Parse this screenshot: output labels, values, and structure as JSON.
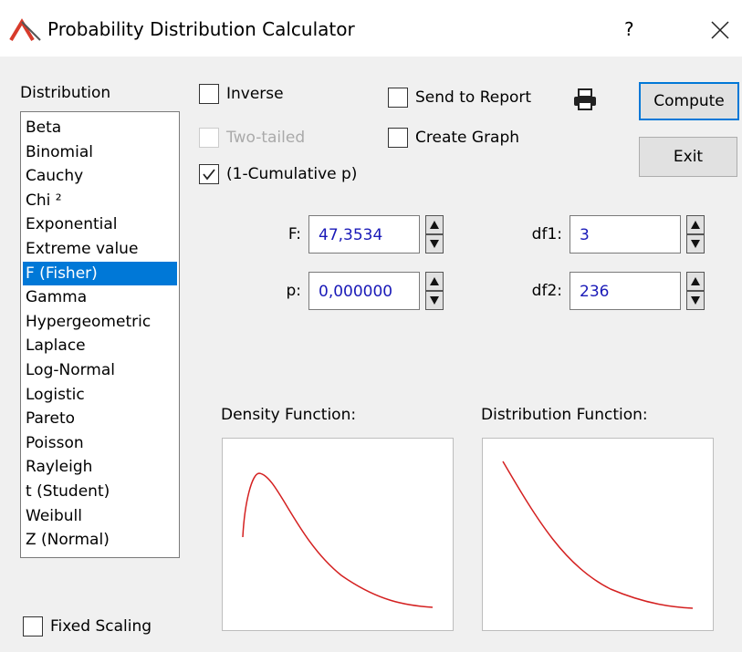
{
  "window": {
    "title": "Probability Distribution Calculator",
    "help": "?"
  },
  "distribution": {
    "label": "Distribution",
    "items": [
      "Beta",
      "Binomial",
      "Cauchy",
      "Chi ²",
      "Exponential",
      "Extreme value",
      "F (Fisher)",
      "Gamma",
      "Hypergeometric",
      "Laplace",
      "Log-Normal",
      "Logistic",
      "Pareto",
      "Poisson",
      "Rayleigh",
      "t (Student)",
      "Weibull",
      "Z (Normal)"
    ],
    "selected": 6
  },
  "options": [
    {
      "label": "Inverse",
      "checked": false,
      "enabled": true
    },
    {
      "label": "Two-tailed",
      "checked": false,
      "enabled": false
    },
    {
      "label": "(1-Cumulative p)",
      "checked": true,
      "enabled": true
    },
    {
      "label": "Send to Report",
      "checked": false,
      "enabled": true
    },
    {
      "label": "Create Graph",
      "checked": false,
      "enabled": true
    }
  ],
  "buttons": [
    "Compute",
    "Exit"
  ],
  "fields": [
    {
      "label": "F:",
      "value": "47,3534"
    },
    {
      "label": "df1:",
      "value": "3"
    },
    {
      "label": "p:",
      "value": "0,000000"
    },
    {
      "label": "df2:",
      "value": "236"
    }
  ],
  "graphs": [
    "Density Function:",
    "Distribution Function:"
  ],
  "fixed_scaling": {
    "label": "Fixed Scaling",
    "checked": false
  }
}
